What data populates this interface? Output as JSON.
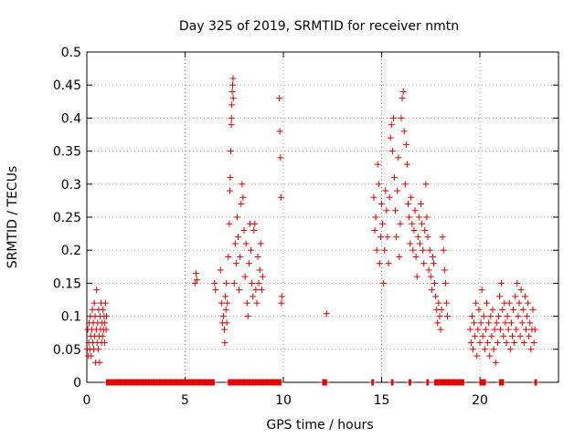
{
  "chart_data": {
    "type": "scatter",
    "title": "Day 325 of 2019, SRMTID for receiver nmtn",
    "xlabel": "GPS time / hours",
    "ylabel": "SRMTID / TECUs",
    "xlim": [
      0,
      24
    ],
    "ylim": [
      0,
      0.5
    ],
    "x_ticks": [
      0,
      5,
      10,
      15,
      20
    ],
    "x_tick_labels": [
      "0",
      "5",
      "10",
      "15",
      "20"
    ],
    "y_ticks": [
      0,
      0.05,
      0.1,
      0.15,
      0.2,
      0.25,
      0.3,
      0.35,
      0.4,
      0.45,
      0.5
    ],
    "y_tick_labels": [
      "0",
      "0.05",
      "0.1",
      "0.15",
      "0.2",
      "0.25",
      "0.3",
      "0.35",
      "0.4",
      "0.45",
      "0.5"
    ],
    "grid": true,
    "marker": "+",
    "marker_color": "#dd0000",
    "series": [
      {
        "name": "SRMTID",
        "points": [
          [
            0.02,
            0.05
          ],
          [
            0.05,
            0.08
          ],
          [
            0.08,
            0.04
          ],
          [
            0.1,
            0.06
          ],
          [
            0.12,
            0.09
          ],
          [
            0.15,
            0.05
          ],
          [
            0.18,
            0.1
          ],
          [
            0.2,
            0.07
          ],
          [
            0.22,
            0.04
          ],
          [
            0.25,
            0.08
          ],
          [
            0.28,
            0.11
          ],
          [
            0.3,
            0.06
          ],
          [
            0.33,
            0.09
          ],
          [
            0.35,
            0.05
          ],
          [
            0.38,
            0.12
          ],
          [
            0.4,
            0.07
          ],
          [
            0.42,
            0.1
          ],
          [
            0.45,
            0.03
          ],
          [
            0.48,
            0.08
          ],
          [
            0.5,
            0.14
          ],
          [
            0.52,
            0.06
          ],
          [
            0.55,
            0.09
          ],
          [
            0.58,
            0.05
          ],
          [
            0.6,
            0.11
          ],
          [
            0.62,
            0.07
          ],
          [
            0.65,
            0.03
          ],
          [
            0.68,
            0.1
          ],
          [
            0.7,
            0.08
          ],
          [
            0.72,
            0.12
          ],
          [
            0.75,
            0.06
          ],
          [
            0.78,
            0.09
          ],
          [
            0.8,
            0.07
          ],
          [
            0.82,
            0.11
          ],
          [
            0.85,
            0.08
          ],
          [
            0.88,
            0.1
          ],
          [
            0.9,
            0.06
          ],
          [
            0.92,
            0.09
          ],
          [
            0.95,
            0.12
          ],
          [
            0.98,
            0.08
          ],
          [
            1.0,
            0.1
          ],
          [
            5.5,
            0.15
          ],
          [
            5.55,
            0.165
          ],
          [
            5.6,
            0.155
          ],
          [
            6.5,
            0.15
          ],
          [
            6.55,
            0.14
          ],
          [
            6.8,
            0.17
          ],
          [
            6.85,
            0.12
          ],
          [
            6.9,
            0.09
          ],
          [
            6.95,
            0.1
          ],
          [
            7.0,
            0.08
          ],
          [
            7.02,
            0.06
          ],
          [
            7.05,
            0.13
          ],
          [
            7.08,
            0.11
          ],
          [
            7.1,
            0.15
          ],
          [
            7.12,
            0.09
          ],
          [
            7.15,
            0.12
          ],
          [
            7.2,
            0.19
          ],
          [
            7.25,
            0.24
          ],
          [
            7.28,
            0.29
          ],
          [
            7.3,
            0.31
          ],
          [
            7.32,
            0.35
          ],
          [
            7.35,
            0.39
          ],
          [
            7.36,
            0.4
          ],
          [
            7.38,
            0.42
          ],
          [
            7.4,
            0.44
          ],
          [
            7.42,
            0.45
          ],
          [
            7.44,
            0.46
          ],
          [
            7.45,
            0.43
          ],
          [
            7.5,
            0.15
          ],
          [
            7.55,
            0.21
          ],
          [
            7.6,
            0.18
          ],
          [
            7.65,
            0.25
          ],
          [
            7.7,
            0.22
          ],
          [
            7.75,
            0.14
          ],
          [
            7.8,
            0.19
          ],
          [
            7.85,
            0.27
          ],
          [
            7.9,
            0.3
          ],
          [
            7.95,
            0.28
          ],
          [
            8.0,
            0.23
          ],
          [
            8.05,
            0.16
          ],
          [
            8.1,
            0.21
          ],
          [
            8.15,
            0.12
          ],
          [
            8.2,
            0.1
          ],
          [
            8.25,
            0.18
          ],
          [
            8.3,
            0.24
          ],
          [
            8.35,
            0.2
          ],
          [
            8.4,
            0.15
          ],
          [
            8.45,
            0.13
          ],
          [
            8.5,
            0.23
          ],
          [
            8.55,
            0.24
          ],
          [
            8.6,
            0.14
          ],
          [
            8.65,
            0.12
          ],
          [
            8.7,
            0.19
          ],
          [
            8.75,
            0.15
          ],
          [
            8.8,
            0.17
          ],
          [
            8.85,
            0.21
          ],
          [
            8.9,
            0.14
          ],
          [
            8.95,
            0.16
          ],
          [
            9.8,
            0.43
          ],
          [
            9.82,
            0.38
          ],
          [
            9.85,
            0.34
          ],
          [
            9.88,
            0.28
          ],
          [
            9.9,
            0.12
          ],
          [
            9.92,
            0.13
          ],
          [
            12.2,
            0.104
          ],
          [
            14.6,
            0.28
          ],
          [
            14.65,
            0.23
          ],
          [
            14.7,
            0.25
          ],
          [
            14.75,
            0.2
          ],
          [
            14.8,
            0.33
          ],
          [
            14.85,
            0.3
          ],
          [
            14.9,
            0.18
          ],
          [
            14.95,
            0.22
          ],
          [
            15.0,
            0.27
          ],
          [
            15.05,
            0.24
          ],
          [
            15.1,
            0.15
          ],
          [
            15.15,
            0.2
          ],
          [
            15.2,
            0.29
          ],
          [
            15.25,
            0.26
          ],
          [
            15.3,
            0.22
          ],
          [
            15.35,
            0.18
          ],
          [
            15.4,
            0.28
          ],
          [
            15.45,
            0.37
          ],
          [
            15.5,
            0.39
          ],
          [
            15.55,
            0.35
          ],
          [
            15.6,
            0.4
          ],
          [
            15.65,
            0.31
          ],
          [
            15.7,
            0.26
          ],
          [
            15.75,
            0.22
          ],
          [
            15.8,
            0.29
          ],
          [
            15.85,
            0.34
          ],
          [
            15.9,
            0.19
          ],
          [
            15.95,
            0.24
          ],
          [
            16.0,
            0.4
          ],
          [
            16.05,
            0.43
          ],
          [
            16.1,
            0.44
          ],
          [
            16.15,
            0.38
          ],
          [
            16.2,
            0.3
          ],
          [
            16.25,
            0.36
          ],
          [
            16.3,
            0.33
          ],
          [
            16.35,
            0.27
          ],
          [
            16.4,
            0.25
          ],
          [
            16.45,
            0.21
          ],
          [
            16.5,
            0.28
          ],
          [
            16.55,
            0.24
          ],
          [
            16.6,
            0.2
          ],
          [
            16.65,
            0.23
          ],
          [
            16.7,
            0.26
          ],
          [
            16.75,
            0.19
          ],
          [
            16.8,
            0.16
          ],
          [
            16.85,
            0.22
          ],
          [
            16.9,
            0.25
          ],
          [
            16.95,
            0.21
          ],
          [
            17.0,
            0.27
          ],
          [
            17.05,
            0.24
          ],
          [
            17.1,
            0.2
          ],
          [
            17.15,
            0.18
          ],
          [
            17.2,
            0.23
          ],
          [
            17.25,
            0.3
          ],
          [
            17.3,
            0.25
          ],
          [
            17.35,
            0.22
          ],
          [
            17.4,
            0.17
          ],
          [
            17.45,
            0.2
          ],
          [
            17.5,
            0.16
          ],
          [
            17.55,
            0.14
          ],
          [
            17.6,
            0.19
          ],
          [
            17.65,
            0.18
          ],
          [
            17.7,
            0.15
          ],
          [
            17.75,
            0.13
          ],
          [
            17.8,
            0.11
          ],
          [
            17.85,
            0.09
          ],
          [
            17.9,
            0.12
          ],
          [
            17.95,
            0.1
          ],
          [
            18.0,
            0.08
          ],
          [
            18.05,
            0.11
          ],
          [
            18.1,
            0.22
          ],
          [
            18.15,
            0.2
          ],
          [
            18.2,
            0.17
          ],
          [
            18.25,
            0.15
          ],
          [
            18.3,
            0.12
          ],
          [
            18.35,
            0.1
          ],
          [
            19.5,
            0.08
          ],
          [
            19.55,
            0.06
          ],
          [
            19.6,
            0.1
          ],
          [
            19.65,
            0.05
          ],
          [
            19.7,
            0.09
          ],
          [
            19.75,
            0.07
          ],
          [
            19.8,
            0.12
          ],
          [
            19.85,
            0.04
          ],
          [
            19.9,
            0.08
          ],
          [
            19.95,
            0.11
          ],
          [
            20.0,
            0.06
          ],
          [
            20.05,
            0.09
          ],
          [
            20.1,
            0.14
          ],
          [
            20.15,
            0.07
          ],
          [
            20.2,
            0.1
          ],
          [
            20.25,
            0.05
          ],
          [
            20.3,
            0.08
          ],
          [
            20.35,
            0.12
          ],
          [
            20.4,
            0.06
          ],
          [
            20.45,
            0.09
          ],
          [
            20.5,
            0.04
          ],
          [
            20.55,
            0.1
          ],
          [
            20.6,
            0.07
          ],
          [
            20.65,
            0.11
          ],
          [
            20.7,
            0.05
          ],
          [
            20.75,
            0.08
          ],
          [
            20.8,
            0.03
          ],
          [
            20.85,
            0.09
          ],
          [
            20.9,
            0.06
          ],
          [
            20.95,
            0.1
          ],
          [
            21.0,
            0.13
          ],
          [
            21.05,
            0.08
          ],
          [
            21.1,
            0.15
          ],
          [
            21.15,
            0.11
          ],
          [
            21.2,
            0.07
          ],
          [
            21.25,
            0.12
          ],
          [
            21.3,
            0.09
          ],
          [
            21.35,
            0.06
          ],
          [
            21.4,
            0.1
          ],
          [
            21.45,
            0.08
          ],
          [
            21.5,
            0.12
          ],
          [
            21.55,
            0.05
          ],
          [
            21.6,
            0.09
          ],
          [
            21.65,
            0.07
          ],
          [
            21.7,
            0.11
          ],
          [
            21.75,
            0.06
          ],
          [
            21.8,
            0.13
          ],
          [
            21.85,
            0.08
          ],
          [
            21.9,
            0.15
          ],
          [
            21.95,
            0.1
          ],
          [
            22.0,
            0.12
          ],
          [
            22.05,
            0.07
          ],
          [
            22.1,
            0.14
          ],
          [
            22.15,
            0.09
          ],
          [
            22.2,
            0.11
          ],
          [
            22.25,
            0.06
          ],
          [
            22.3,
            0.13
          ],
          [
            22.35,
            0.08
          ],
          [
            22.4,
            0.1
          ],
          [
            22.45,
            0.12
          ],
          [
            22.5,
            0.07
          ],
          [
            22.55,
            0.09
          ],
          [
            22.6,
            0.05
          ],
          [
            22.65,
            0.08
          ],
          [
            22.7,
            0.11
          ],
          [
            22.75,
            0.06
          ],
          [
            22.8,
            0.08
          ]
        ],
        "zero_segments": [
          [
            1.0,
            6.5
          ],
          [
            7.2,
            9.9
          ],
          [
            12.0,
            12.2
          ],
          [
            14.5,
            14.6
          ],
          [
            15.5,
            15.6
          ],
          [
            16.4,
            16.5
          ],
          [
            17.3,
            17.4
          ],
          [
            17.7,
            19.2
          ],
          [
            20.0,
            20.3
          ],
          [
            21.0,
            21.2
          ],
          [
            22.8,
            22.9
          ]
        ]
      }
    ]
  }
}
